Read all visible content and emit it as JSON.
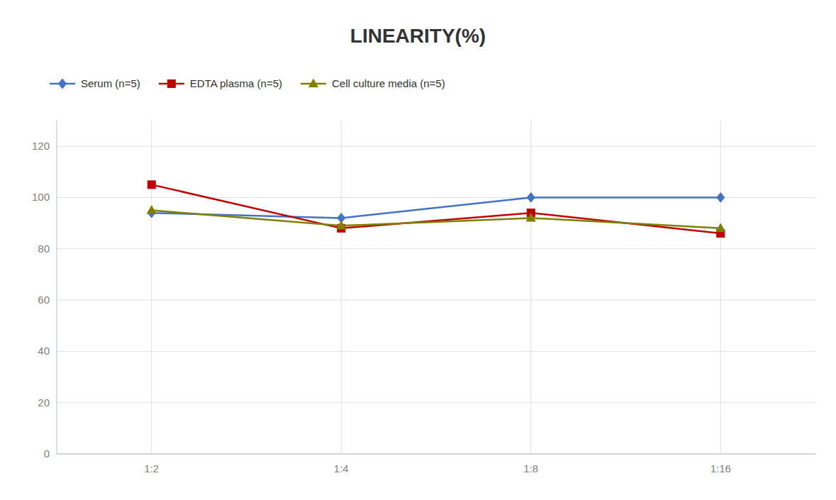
{
  "chart_data": {
    "type": "line",
    "title": "LINEARITY(%)",
    "categories": [
      "1:2",
      "1:4",
      "1:8",
      "1:16"
    ],
    "series": [
      {
        "name": "Serum (n=5)",
        "color": "#4472C4",
        "marker": "diamond",
        "values": [
          94,
          92,
          100,
          100
        ]
      },
      {
        "name": "EDTA plasma (n=5)",
        "color": "#C00000",
        "marker": "square",
        "values": [
          105,
          88,
          94,
          86
        ]
      },
      {
        "name": "Cell culture media (n=5)",
        "color": "#7F7F00",
        "marker": "triangle",
        "values": [
          95,
          89,
          92,
          88
        ]
      }
    ],
    "ylim": [
      0,
      130
    ],
    "yticks": [
      0,
      20,
      40,
      60,
      80,
      100,
      120
    ],
    "grid": true,
    "legend": "top"
  }
}
